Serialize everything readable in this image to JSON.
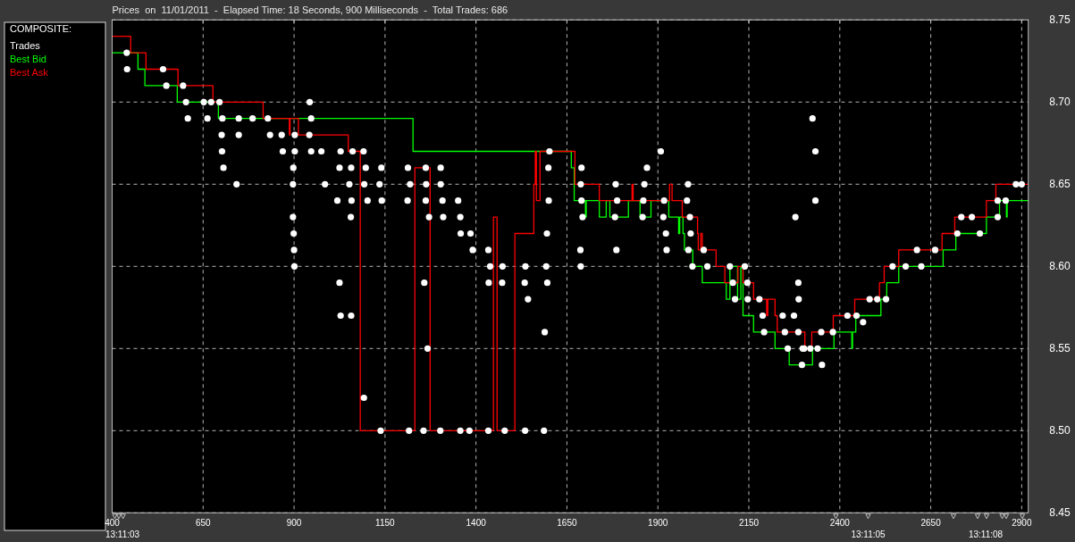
{
  "chart_data": {
    "type": "scatter",
    "title": "Prices  on  11/01/2011  -  Elapsed Time: 18 Seconds, 900 Milliseconds  -  Total Trades: 686",
    "legend_title": "COMPOSITE:",
    "legend": "left",
    "grid": true,
    "xlim": [
      400,
      2918
    ],
    "xticks": [
      400,
      650,
      900,
      1150,
      1400,
      1650,
      1900,
      2150,
      2400,
      2650,
      2900
    ],
    "ylim": [
      8.45,
      8.75
    ],
    "yticks": [
      8.45,
      {
        "value": 8.5,
        "label": "8.50"
      },
      8.55,
      {
        "value": 8.6,
        "label": "8.60"
      },
      8.65,
      {
        "value": 8.7,
        "label": "8.70"
      },
      8.75
    ],
    "annotations": [
      "13:11:03",
      "13:11:05",
      "13:11:08"
    ],
    "series": [
      {
        "name": "Trades",
        "color": "#ffffff",
        "marker": "circle",
        "x": [
          440,
          441,
          540,
          549,
          595,
          603,
          608,
          652,
          662,
          672,
          695,
          701,
          703,
          702,
          706,
          742,
          748,
          748,
          786,
          828,
          834,
          866,
          869,
          897,
          897,
          898,
          899,
          900,
          901,
          902,
          902,
          943,
          942,
          947,
          947,
          975,
          985,
          1019,
          1025,
          1025,
          1028,
          1028,
          1052,
          1056,
          1057,
          1057,
          1058,
          1061,
          1091,
          1092,
          1093,
          1097,
          1102,
          1135,
          1138,
          1140,
          1141,
          1212,
          1213,
          1216,
          1219,
          1256,
          1258,
          1262,
          1262,
          1263,
          1267,
          1271,
          1302,
          1303,
          1303,
          1308,
          1310,
          1351,
          1357,
          1357,
          1358,
          1382,
          1385,
          1391,
          1434,
          1434,
          1435,
          1439,
          1472,
          1473,
          1479,
          1534,
          1535,
          1536,
          1543,
          1587,
          1589,
          1593,
          1595,
          1596,
          1599,
          1600,
          1602,
          1687,
          1688,
          1688,
          1690,
          1690,
          1693,
          1782,
          1784,
          1786,
          1788,
          1858,
          1860,
          1863,
          1870,
          1908,
          1915,
          1917,
          1922,
          1924,
          1980,
          1983,
          1984,
          1988,
          1990,
          1995,
          2026,
          2036,
          2098,
          2106,
          2112,
          2139,
          2146,
          2147,
          2179,
          2188,
          2192,
          2243,
          2249,
          2257,
          2274,
          2278,
          2286,
          2287,
          2286,
          2296,
          2298,
          2302,
          2319,
          2325,
          2333,
          2333,
          2339,
          2349,
          2351,
          2381,
          2421,
          2446,
          2464,
          2482,
          2503,
          2527,
          2545,
          2581,
          2612,
          2624,
          2662,
          2723,
          2734,
          2763,
          2785,
          2834,
          2834,
          2856,
          2884,
          2900
        ],
        "values": [
          8.73,
          8.72,
          8.72,
          8.71,
          8.71,
          8.7,
          8.69,
          8.7,
          8.69,
          8.7,
          8.7,
          8.68,
          8.69,
          8.67,
          8.66,
          8.65,
          8.69,
          8.68,
          8.69,
          8.69,
          8.68,
          8.68,
          8.67,
          8.65,
          8.63,
          8.66,
          8.62,
          8.61,
          8.6,
          8.68,
          8.67,
          8.7,
          8.68,
          8.69,
          8.67,
          8.67,
          8.65,
          8.64,
          8.66,
          8.59,
          8.67,
          8.57,
          8.65,
          8.63,
          8.66,
          8.57,
          8.64,
          8.67,
          8.67,
          8.52,
          8.65,
          8.66,
          8.64,
          8.65,
          8.5,
          8.66,
          8.64,
          8.64,
          8.66,
          8.5,
          8.65,
          8.5,
          8.59,
          8.66,
          8.64,
          8.65,
          8.55,
          8.63,
          8.5,
          8.66,
          8.65,
          8.64,
          8.63,
          8.64,
          8.63,
          8.5,
          8.62,
          8.5,
          8.62,
          8.61,
          8.61,
          8.5,
          8.59,
          8.6,
          8.59,
          8.6,
          8.5,
          8.59,
          8.5,
          8.6,
          8.58,
          8.5,
          8.56,
          8.6,
          8.62,
          8.59,
          8.66,
          8.64,
          8.67,
          8.61,
          8.6,
          8.65,
          8.66,
          8.64,
          8.63,
          8.63,
          8.65,
          8.61,
          8.64,
          8.63,
          8.64,
          8.65,
          8.66,
          8.67,
          8.63,
          8.64,
          8.62,
          8.61,
          8.64,
          8.65,
          8.61,
          8.63,
          8.62,
          8.6,
          8.61,
          8.6,
          8.6,
          8.59,
          8.58,
          8.6,
          8.59,
          8.58,
          8.58,
          8.57,
          8.56,
          8.57,
          8.56,
          8.55,
          8.57,
          8.63,
          8.59,
          8.58,
          8.56,
          8.54,
          8.55,
          8.55,
          8.55,
          8.69,
          8.67,
          8.64,
          8.55,
          8.56,
          8.54,
          8.56,
          8.57,
          8.57,
          8.566,
          8.58,
          8.58,
          8.58,
          8.6,
          8.6,
          8.61,
          8.6,
          8.61,
          8.62,
          8.63,
          8.63,
          8.62,
          8.63,
          8.64,
          8.64,
          8.65,
          8.65
        ]
      },
      {
        "name": "Best Bid",
        "type": "step",
        "color": "#00ff00",
        "x": [
          400,
          471,
          490,
          579,
          692,
          1227,
          1662,
          1670,
          1701,
          1703,
          1739,
          1758,
          1768,
          1819,
          1851,
          1881,
          1930,
          1957,
          1960,
          1969,
          1973,
          1996,
          2022,
          2088,
          2098,
          2119,
          2128,
          2134,
          2163,
          2222,
          2261,
          2325,
          2384,
          2433,
          2435,
          2444,
          2513,
          2529,
          2562,
          2684,
          2719,
          2803,
          2839,
          2858,
          2860,
          2918
        ],
        "values": [
          8.73,
          8.72,
          8.71,
          8.7,
          8.69,
          8.67,
          8.66,
          8.64,
          8.63,
          8.64,
          8.63,
          8.64,
          8.63,
          8.64,
          8.63,
          8.64,
          8.63,
          8.62,
          8.63,
          8.62,
          8.61,
          8.6,
          8.59,
          8.58,
          8.6,
          8.58,
          8.6,
          8.57,
          8.56,
          8.55,
          8.54,
          8.55,
          8.56,
          8.55,
          8.56,
          8.57,
          8.58,
          8.59,
          8.6,
          8.61,
          8.62,
          8.63,
          8.64,
          8.63,
          8.64,
          8.64
        ]
      },
      {
        "name": "Best Ask",
        "type": "step",
        "color": "#ff0000",
        "x": [
          400,
          451,
          493,
          581,
          677,
          815,
          887,
          889,
          912,
          1049,
          1082,
          1232,
          1274,
          1448,
          1458,
          1507,
          1559,
          1563,
          1566,
          1576,
          1672,
          1739,
          1829,
          1832,
          1932,
          1939,
          1967,
          2009,
          2011,
          2018,
          2022,
          2060,
          2084,
          2120,
          2134,
          2163,
          2199,
          2202,
          2222,
          2228,
          2304,
          2323,
          2382,
          2441,
          2509,
          2522,
          2562,
          2681,
          2716,
          2803,
          2829,
          2918
        ],
        "values": [
          8.74,
          8.73,
          8.72,
          8.71,
          8.7,
          8.69,
          8.68,
          8.69,
          8.68,
          8.67,
          8.5,
          8.66,
          8.5,
          8.63,
          8.5,
          8.62,
          8.65,
          8.67,
          8.64,
          8.67,
          8.65,
          8.64,
          8.65,
          8.64,
          8.65,
          8.64,
          8.63,
          8.62,
          8.61,
          8.62,
          8.61,
          8.6,
          8.59,
          8.6,
          8.59,
          8.58,
          8.57,
          8.58,
          8.57,
          8.56,
          8.55,
          8.56,
          8.57,
          8.58,
          8.59,
          8.6,
          8.61,
          8.62,
          8.63,
          8.64,
          8.65,
          8.65
        ]
      }
    ]
  }
}
